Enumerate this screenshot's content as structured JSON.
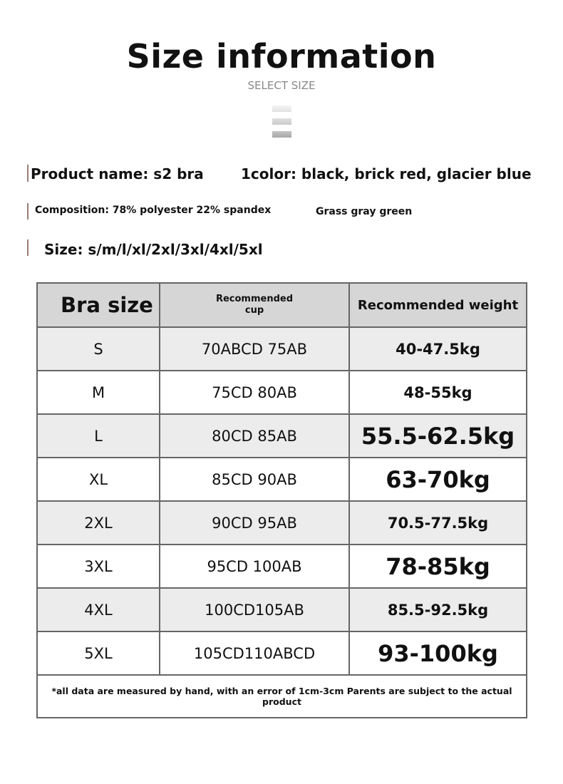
{
  "header": {
    "title": "Size information",
    "subtitle": "SELECT SIZE"
  },
  "info": {
    "product_name": "Product name: s2 bra",
    "color": "1color: black, brick red, glacier blue",
    "composition": "Composition: 78% polyester 22% spandex",
    "color_extra": "Grass gray green",
    "sizes": "Size: s/m/l/xl/2xl/3xl/4xl/5xl"
  },
  "table": {
    "headers": [
      "Bra size",
      "Recommended cup",
      "Recommended weight"
    ],
    "rows": [
      [
        "S",
        "70ABCD 75AB",
        "40-47.5kg"
      ],
      [
        "M",
        "75CD 80AB",
        "48-55kg"
      ],
      [
        "L",
        "80CD 85AB",
        "55.5-62.5kg"
      ],
      [
        "XL",
        "85CD 90AB",
        "63-70kg"
      ],
      [
        "2XL",
        "90CD 95AB",
        "70.5-77.5kg"
      ],
      [
        "3XL",
        "95CD 100AB",
        "78-85kg"
      ],
      [
        "4XL",
        "100CD105AB",
        "85.5-92.5kg"
      ],
      [
        "5XL",
        "105CD110ABCD",
        "93-100kg"
      ]
    ],
    "footnote": "*all data are measured by hand, with an error of 1cm-3cm Parents are subject to the actual product"
  }
}
